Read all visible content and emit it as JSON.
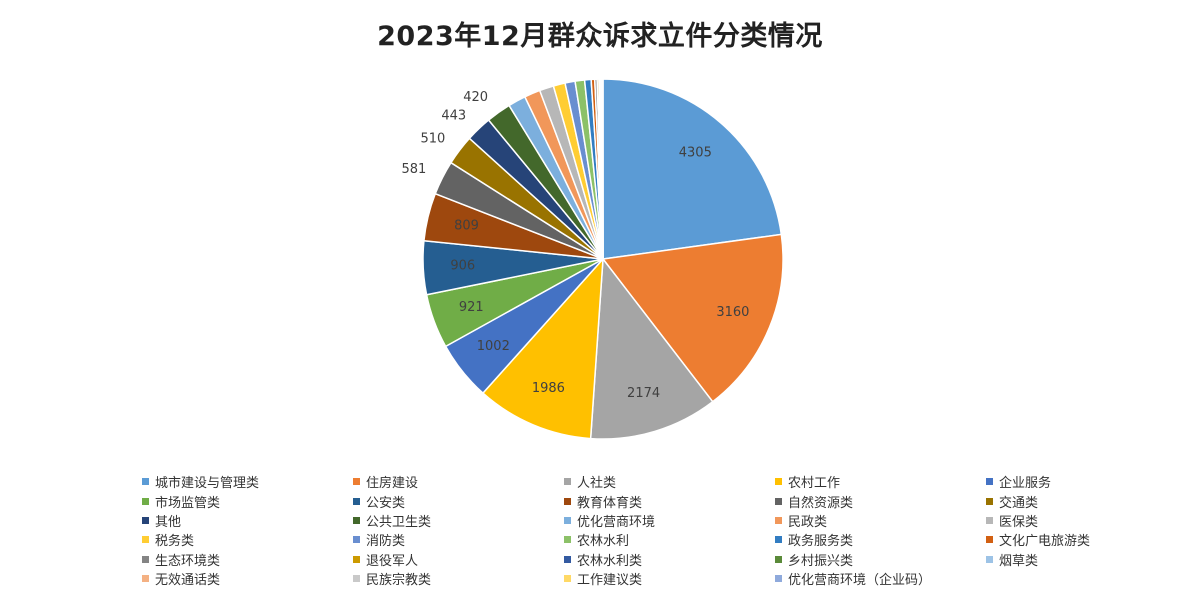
{
  "chart_data": {
    "type": "pie",
    "title": "2023年12月群众诉求立件分类情况",
    "slices": [
      {
        "name": "城市建设与管理类",
        "value": 4305,
        "label": "4305",
        "color": "#5b9bd5"
      },
      {
        "name": "住房建设",
        "value": 3160,
        "label": "3160",
        "color": "#ed7d31"
      },
      {
        "name": "人社类",
        "value": 2174,
        "label": "2174",
        "color": "#a5a5a5"
      },
      {
        "name": "农村工作",
        "value": 1986,
        "label": "1986",
        "color": "#ffc000"
      },
      {
        "name": "企业服务",
        "value": 1002,
        "label": "1002",
        "color": "#4472c4"
      },
      {
        "name": "市场监管类",
        "value": 921,
        "label": "921",
        "color": "#70ad47"
      },
      {
        "name": "公安类",
        "value": 906,
        "label": "906",
        "color": "#255e91"
      },
      {
        "name": "教育体育类",
        "value": 809,
        "label": "809",
        "color": "#9e480e"
      },
      {
        "name": "自然资源类",
        "value": 581,
        "label": "581",
        "color": "#636363"
      },
      {
        "name": "交通类",
        "value": 510,
        "label": "510",
        "color": "#997300"
      },
      {
        "name": "其他",
        "value": 443,
        "label": "443",
        "color": "#264478"
      },
      {
        "name": "公共卫生类",
        "value": 420,
        "label": "420",
        "color": "#43682b"
      },
      {
        "name": "优化营商环境",
        "value": 300,
        "label": "",
        "color": "#7cafdd"
      },
      {
        "name": "民政类",
        "value": 270,
        "label": "",
        "color": "#f1975a"
      },
      {
        "name": "医保类",
        "value": 240,
        "label": "",
        "color": "#b7b7b7"
      },
      {
        "name": "税务类",
        "value": 200,
        "label": "",
        "color": "#ffcd33"
      },
      {
        "name": "消防类",
        "value": 170,
        "label": "",
        "color": "#698ed0"
      },
      {
        "name": "农林水利",
        "value": 160,
        "label": "",
        "color": "#8cc168"
      },
      {
        "name": "政务服务类",
        "value": 110,
        "label": "",
        "color": "#327dc2"
      },
      {
        "name": "文化广电旅游类",
        "value": 60,
        "label": "",
        "color": "#d26012"
      },
      {
        "name": "生态环境类",
        "value": 40,
        "label": "",
        "color": "#848484"
      },
      {
        "name": "退役军人",
        "value": 30,
        "label": "",
        "color": "#cc9a00"
      },
      {
        "name": "农林水利类",
        "value": 20,
        "label": "",
        "color": "#335aa1"
      },
      {
        "name": "乡村振兴类",
        "value": 15,
        "label": "",
        "color": "#5a8a39"
      },
      {
        "name": "烟草类",
        "value": 10,
        "label": "",
        "color": "#9dc3e6"
      },
      {
        "name": "无效通话类",
        "value": 8,
        "label": "",
        "color": "#f4b183"
      },
      {
        "name": "民族宗教类",
        "value": 6,
        "label": "",
        "color": "#c9c9c9"
      },
      {
        "name": "工作建议类",
        "value": 5,
        "label": "",
        "color": "#ffd966"
      },
      {
        "name": "优化营商环境（企业码）",
        "value": 4,
        "label": "",
        "color": "#8faadc"
      }
    ],
    "start_angle": "12 o'clock",
    "direction": "clockwise",
    "legend_position": "bottom"
  }
}
